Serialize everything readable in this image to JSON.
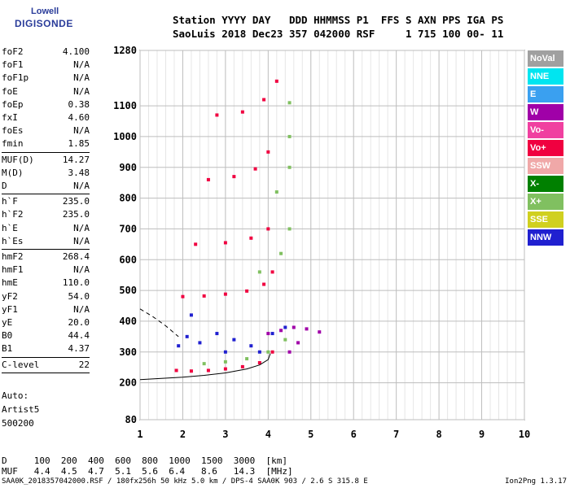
{
  "logo": {
    "line1": "Lowell",
    "line2": "DIGISONDE"
  },
  "header": {
    "line1": "Station YYYY DAY   DDD HHMMSS P1  FFS S AXN PPS IGA PS",
    "line2": "SaoLuis 2018 Dec23 357 042000 RSF     1 715 100 00- 11"
  },
  "params_group1": [
    {
      "name": "foF2",
      "value": "4.100"
    },
    {
      "name": "foF1",
      "value": "N/A"
    },
    {
      "name": "foF1p",
      "value": "N/A"
    },
    {
      "name": "foE",
      "value": "N/A"
    },
    {
      "name": "foEp",
      "value": "0.38"
    },
    {
      "name": "fxI",
      "value": "4.60"
    },
    {
      "name": "foEs",
      "value": "N/A"
    },
    {
      "name": "fmin",
      "value": "1.85"
    }
  ],
  "params_group2": [
    {
      "name": "MUF(D)",
      "value": "14.27"
    },
    {
      "name": "M(D)",
      "value": "3.48"
    },
    {
      "name": "D",
      "value": "N/A"
    }
  ],
  "params_group3": [
    {
      "name": "h`F",
      "value": "235.0"
    },
    {
      "name": "h`F2",
      "value": "235.0"
    },
    {
      "name": "h`E",
      "value": "N/A"
    },
    {
      "name": "h`Es",
      "value": "N/A"
    }
  ],
  "params_group4": [
    {
      "name": "hmF2",
      "value": "268.4"
    },
    {
      "name": "hmF1",
      "value": "N/A"
    },
    {
      "name": "hmE",
      "value": "110.0"
    },
    {
      "name": "yF2",
      "value": "54.0"
    },
    {
      "name": "yF1",
      "value": "N/A"
    },
    {
      "name": "yE",
      "value": "20.0"
    },
    {
      "name": "B0",
      "value": "44.4"
    },
    {
      "name": "B1",
      "value": "4.37"
    }
  ],
  "params_group5": [
    {
      "name": "C-level",
      "value": "22"
    }
  ],
  "autoscaling": {
    "line1": "Auto:",
    "line2": "Artist5",
    "line3": "500200"
  },
  "legend": [
    {
      "label": "NoVal",
      "color": "#a0a0a0"
    },
    {
      "label": "NNE",
      "color": "#00e5f0"
    },
    {
      "label": "E",
      "color": "#3aa0f0"
    },
    {
      "label": "W",
      "color": "#a000a8"
    },
    {
      "label": "Vo-",
      "color": "#f040a0"
    },
    {
      "label": "Vo+",
      "color": "#f00040"
    },
    {
      "label": "SSW",
      "color": "#f0a8a8"
    },
    {
      "label": "X-",
      "color": "#008000"
    },
    {
      "label": "X+",
      "color": "#80c060"
    },
    {
      "label": "SSE",
      "color": "#d0d020"
    },
    {
      "label": "NNW",
      "color": "#2020d0"
    }
  ],
  "muf_table": {
    "row1": "D     100  200  400  600  800  1000  1500  3000  [km]",
    "row2": "MUF   4.4  4.5  4.7  5.1  5.6  6.4   8.6   14.3  [MHz]"
  },
  "footer": {
    "left": "SAA0K_2018357042000.RSF / 180fx256h 50 kHz 5.0 km / DPS-4 SAA0K 903 / 2.6 S 315.8 E",
    "right": "Ion2Png 1.3.17"
  },
  "chart_data": {
    "type": "scatter",
    "title": "",
    "xlabel": "",
    "ylabel": "",
    "xlim": [
      1,
      10
    ],
    "ylim": [
      80,
      1280
    ],
    "x_ticks": [
      1,
      2,
      3,
      4,
      5,
      6,
      7,
      8,
      9,
      10
    ],
    "y_ticks": [
      80,
      200,
      300,
      400,
      500,
      600,
      700,
      800,
      900,
      1000,
      1100,
      1280
    ],
    "grid": true,
    "series": [
      {
        "name": "Vo+",
        "color": "#f00040",
        "points": [
          [
            1.85,
            240
          ],
          [
            2.2,
            238
          ],
          [
            2.6,
            240
          ],
          [
            3.0,
            245
          ],
          [
            3.4,
            252
          ],
          [
            3.8,
            265
          ],
          [
            4.1,
            300
          ],
          [
            2.0,
            480
          ],
          [
            2.5,
            482
          ],
          [
            3.0,
            488
          ],
          [
            3.5,
            498
          ],
          [
            3.9,
            520
          ],
          [
            4.1,
            560
          ],
          [
            2.3,
            650
          ],
          [
            3.0,
            655
          ],
          [
            3.6,
            670
          ],
          [
            4.0,
            700
          ],
          [
            2.6,
            860
          ],
          [
            3.2,
            870
          ],
          [
            3.7,
            895
          ],
          [
            4.0,
            950
          ],
          [
            2.8,
            1070
          ],
          [
            3.4,
            1080
          ],
          [
            3.9,
            1120
          ],
          [
            4.2,
            1180
          ]
        ]
      },
      {
        "name": "X+",
        "color": "#80c060",
        "points": [
          [
            2.5,
            262
          ],
          [
            3.0,
            268
          ],
          [
            3.5,
            278
          ],
          [
            4.0,
            300
          ],
          [
            4.4,
            340
          ],
          [
            3.8,
            560
          ],
          [
            4.3,
            620
          ],
          [
            4.5,
            700
          ],
          [
            4.2,
            820
          ],
          [
            4.5,
            900
          ],
          [
            4.5,
            1000
          ],
          [
            4.5,
            1110
          ]
        ]
      },
      {
        "name": "NNW",
        "color": "#2020d0",
        "points": [
          [
            1.9,
            320
          ],
          [
            2.1,
            350
          ],
          [
            2.4,
            330
          ],
          [
            2.8,
            360
          ],
          [
            3.2,
            340
          ],
          [
            3.6,
            320
          ],
          [
            4.1,
            360
          ],
          [
            4.4,
            380
          ],
          [
            2.2,
            420
          ],
          [
            3.0,
            300
          ],
          [
            3.8,
            300
          ]
        ]
      },
      {
        "name": "W",
        "color": "#a000a8",
        "points": [
          [
            4.0,
            360
          ],
          [
            4.3,
            370
          ],
          [
            4.6,
            380
          ],
          [
            4.9,
            375
          ],
          [
            5.2,
            365
          ],
          [
            4.5,
            300
          ],
          [
            4.7,
            330
          ]
        ]
      }
    ],
    "curves": [
      {
        "name": "profile",
        "style": "solid",
        "x": [
          1,
          1.5,
          2,
          2.5,
          3,
          3.5,
          3.8,
          4.0,
          4.05
        ],
        "y": [
          210,
          214,
          218,
          224,
          232,
          245,
          258,
          275,
          295
        ]
      },
      {
        "name": "topside",
        "style": "dashed",
        "x": [
          1,
          1.3,
          1.6,
          1.9
        ],
        "y": [
          440,
          415,
          385,
          350
        ]
      }
    ]
  }
}
